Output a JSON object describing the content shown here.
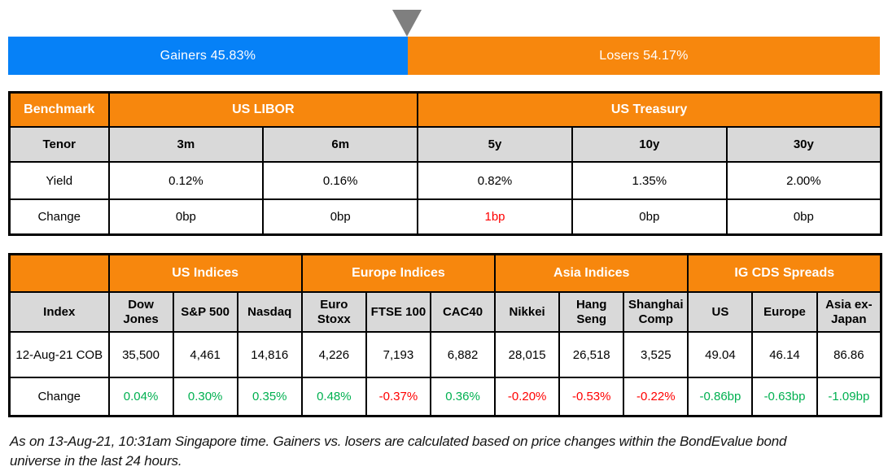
{
  "colors": {
    "accent_orange": "#F7870D",
    "gainers_blue": "#0681F7",
    "subheader_gray": "#D9D9D9",
    "positive_green": "#00B050",
    "negative_red": "#FF0000",
    "pointer_gray": "#7F7F7F",
    "border_black": "#000000"
  },
  "chart_data": [
    {
      "type": "bar",
      "categories": [
        "Gainers",
        "Losers"
      ],
      "values": [
        45.83,
        54.17
      ],
      "pointer_icon": "down-triangle",
      "series": [
        {
          "name": "Gainers",
          "value": 45.83,
          "label": "Gainers 45.83%",
          "color": "#0681F7"
        },
        {
          "name": "Losers",
          "value": 54.17,
          "label": "Losers 54.17%",
          "color": "#F7870D"
        }
      ]
    },
    {
      "type": "table",
      "name": "benchmark",
      "corner_label": "Benchmark",
      "groups": [
        {
          "label": "US LIBOR",
          "span": 2
        },
        {
          "label": "US Treasury",
          "span": 3
        }
      ],
      "rows": {
        "tenor": {
          "label": "Tenor",
          "cells": [
            "3m",
            "6m",
            "5y",
            "10y",
            "30y"
          ]
        },
        "yield": {
          "label": "Yield",
          "cells": [
            "0.12%",
            "0.16%",
            "0.82%",
            "1.35%",
            "2.00%"
          ]
        },
        "change": {
          "label": "Change",
          "cells": [
            {
              "text": "0bp",
              "color": "#000000"
            },
            {
              "text": "0bp",
              "color": "#000000"
            },
            {
              "text": "1bp",
              "color": "#FF0000"
            },
            {
              "text": "0bp",
              "color": "#000000"
            },
            {
              "text": "0bp",
              "color": "#000000"
            }
          ]
        }
      }
    },
    {
      "type": "table",
      "name": "indices_and_cds",
      "corner_label": "Index",
      "groups": [
        {
          "label": "US Indices",
          "span": 3
        },
        {
          "label": "Europe Indices",
          "span": 3
        },
        {
          "label": "Asia Indices",
          "span": 3
        },
        {
          "label": "IG CDS Spreads",
          "span": 3
        }
      ],
      "columns": [
        "Dow Jones",
        "S&P 500",
        "Nasdaq",
        "Euro Stoxx",
        "FTSE 100",
        "CAC40",
        "Nikkei",
        "Hang Seng",
        "Shanghai Comp",
        "US",
        "Europe",
        "Asia ex-Japan"
      ],
      "rows": {
        "cob": {
          "label": "12-Aug-21 COB",
          "cells": [
            "35,500",
            "4,461",
            "14,816",
            "4,226",
            "7,193",
            "6,882",
            "28,015",
            "26,518",
            "3,525",
            "49.04",
            "46.14",
            "86.86"
          ]
        },
        "change": {
          "label": "Change",
          "cells": [
            {
              "text": "0.04%",
              "color": "#00B050"
            },
            {
              "text": "0.30%",
              "color": "#00B050"
            },
            {
              "text": "0.35%",
              "color": "#00B050"
            },
            {
              "text": "0.48%",
              "color": "#00B050"
            },
            {
              "text": "-0.37%",
              "color": "#FF0000"
            },
            {
              "text": "0.36%",
              "color": "#00B050"
            },
            {
              "text": "-0.20%",
              "color": "#FF0000"
            },
            {
              "text": "-0.53%",
              "color": "#FF0000"
            },
            {
              "text": "-0.22%",
              "color": "#FF0000"
            },
            {
              "text": "-0.86bp",
              "color": "#00B050"
            },
            {
              "text": "-0.63bp",
              "color": "#00B050"
            },
            {
              "text": "-1.09bp",
              "color": "#00B050"
            }
          ]
        }
      }
    }
  ],
  "footer": {
    "text": "As on 13-Aug-21, 10:31am Singapore time. Gainers vs. losers are calculated based on price changes within the BondEvalue bond universe in the last 24 hours."
  }
}
